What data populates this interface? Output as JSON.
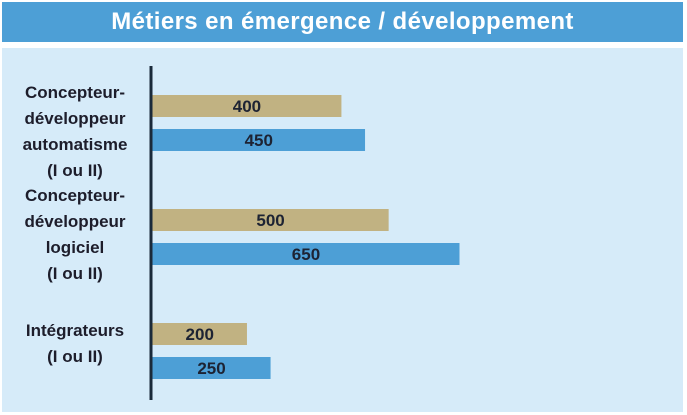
{
  "chart_data": {
    "type": "bar",
    "orientation": "horizontal",
    "title": "Métiers en émergence / développement",
    "categories": [
      [
        "Concepteur-",
        "développeur",
        "automatisme",
        "(I ou II)"
      ],
      [
        "Concepteur-",
        "développeur",
        "logiciel",
        "(I ou II)"
      ],
      [
        "Intégrateurs",
        "(I ou II)"
      ]
    ],
    "series": [
      {
        "color": "#c1b282",
        "values": [
          400,
          500,
          200
        ]
      },
      {
        "color": "#4d9fd6",
        "values": [
          450,
          650,
          250
        ]
      }
    ],
    "data_labels": true,
    "value_axis_shown": false,
    "grid": false
  },
  "colors": {
    "title_bar": "#4d9fd6",
    "panel": "#d6ebf9",
    "axis": "#1a2a3a",
    "label_text": "#1d1d2b"
  }
}
